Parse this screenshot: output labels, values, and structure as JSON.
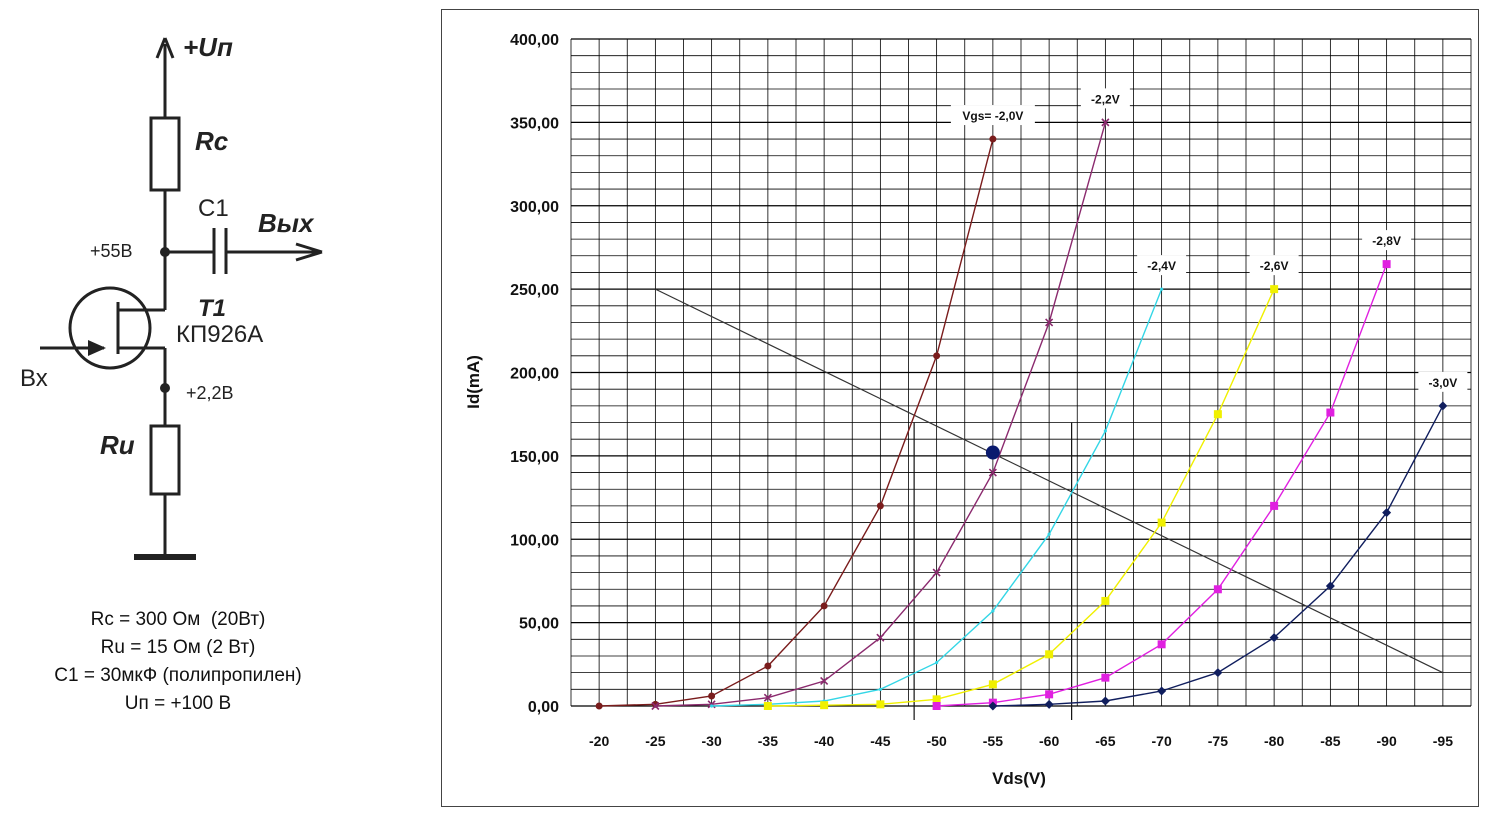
{
  "schematic": {
    "supply_label": "+Uп",
    "rc_label": "Rc",
    "c1_label": "C1",
    "output_label": "Вых",
    "drain_voltage": "+55В",
    "t1_label": "T1",
    "transistor_label": "КП926А",
    "input_label": "Вх",
    "source_voltage": "+2,2В",
    "ru_label": "Ru"
  },
  "specs": [
    "Rc = 300 Ом  (20Вт)",
    "Ru = 15 Ом (2 Вт)",
    "C1 = 30мкФ (полипропилен)",
    "Uп = +100 В"
  ],
  "colors": {
    "grid": "#000000",
    "load_line": "#333333",
    "operating_point": "#0a1a6e"
  },
  "chart_data": {
    "type": "line",
    "xlabel": "Vds(V)",
    "ylabel": "Id(mA)",
    "x_ticks": [
      "-20",
      "-25",
      "-30",
      "-35",
      "-40",
      "-45",
      "-50",
      "-55",
      "-60",
      "-65",
      "-70",
      "-75",
      "-80",
      "-85",
      "-90",
      "-95"
    ],
    "y_ticks": [
      "0,00",
      "50,00",
      "100,00",
      "150,00",
      "200,00",
      "250,00",
      "300,00",
      "350,00",
      "400,00"
    ],
    "xlim": [
      -20,
      -95
    ],
    "ylim": [
      0,
      400
    ],
    "grid": true,
    "series": [
      {
        "name": "Vgs= -2,0V",
        "color": "#7a1c1c",
        "marker": "circle",
        "x": [
          -20,
          -25,
          -30,
          -35,
          -40,
          -45,
          -50,
          -55
        ],
        "y": [
          0,
          1,
          6,
          24,
          60,
          120,
          210,
          340
        ]
      },
      {
        "name": "-2,2V",
        "color": "#8b2a6e",
        "marker": "x",
        "x": [
          -25,
          -30,
          -35,
          -40,
          -45,
          -50,
          -55,
          -60,
          -65
        ],
        "y": [
          0,
          1,
          5,
          15,
          41,
          80,
          140,
          230,
          350
        ]
      },
      {
        "name": "-2,4V",
        "color": "#33d6e6",
        "marker": "none",
        "x": [
          -30,
          -35,
          -40,
          -45,
          -50,
          -55,
          -60,
          -65,
          -70
        ],
        "y": [
          0,
          1,
          3,
          10,
          26,
          57,
          103,
          165,
          250
        ]
      },
      {
        "name": "-2,6V",
        "color": "#f0f000",
        "marker": "square",
        "x": [
          -35,
          -40,
          -45,
          -50,
          -55,
          -60,
          -65,
          -70,
          -75,
          -80
        ],
        "y": [
          0,
          0.5,
          1,
          4,
          13,
          31,
          63,
          110,
          175,
          250
        ]
      },
      {
        "name": "-2,8V",
        "color": "#e020e0",
        "marker": "square",
        "x": [
          -50,
          -55,
          -60,
          -65,
          -70,
          -75,
          -80,
          -85,
          -90
        ],
        "y": [
          0,
          2,
          7,
          17,
          37,
          70,
          120,
          176,
          265
        ]
      },
      {
        "name": "-3,0V",
        "color": "#101e5e",
        "marker": "diamond",
        "x": [
          -55,
          -60,
          -65,
          -70,
          -75,
          -80,
          -85,
          -90,
          -95
        ],
        "y": [
          0,
          1,
          3,
          9,
          20,
          41,
          72,
          116,
          180
        ]
      }
    ],
    "load_line": {
      "x": [
        -25,
        -95
      ],
      "y": [
        250,
        20
      ]
    },
    "operating_point": {
      "x": -55,
      "y": 152
    },
    "vertical_markers": [
      -48,
      -62
    ]
  }
}
